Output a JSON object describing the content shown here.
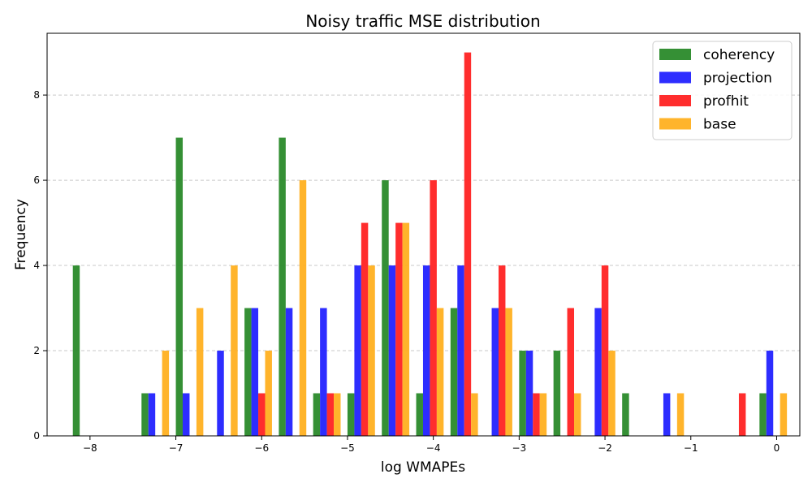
{
  "chart_data": {
    "type": "bar",
    "title": "Noisy traffic MSE distribution",
    "xlabel": "log WMAPEs",
    "ylabel": "Frequency",
    "xlim": [
      -8.5,
      0.27
    ],
    "ylim": [
      0,
      9.45
    ],
    "xticks": [
      -8,
      -7,
      -6,
      -5,
      -4,
      -3,
      -2,
      -1,
      0
    ],
    "yticks": [
      0,
      2,
      4,
      6,
      8
    ],
    "xtick_labels": [
      "−8",
      "−7",
      "−6",
      "−5",
      "−4",
      "−3",
      "−2",
      "−1",
      "0"
    ],
    "ytick_labels": [
      "0",
      "2",
      "4",
      "6",
      "8"
    ],
    "grid": "y-dashed",
    "legend_position": "top-right",
    "bin_start": -8.2,
    "bin_width": 0.4,
    "bar_width": 0.08,
    "series": [
      {
        "name": "coherency",
        "color": "#2a8a2a",
        "values": [
          4,
          0,
          1,
          7,
          0,
          3,
          7,
          1,
          1,
          6,
          1,
          3,
          0,
          2,
          2,
          0,
          1,
          0,
          0,
          0,
          1
        ]
      },
      {
        "name": "projection",
        "color": "#2222ff",
        "values": [
          0,
          0,
          1,
          1,
          2,
          3,
          3,
          3,
          4,
          4,
          4,
          4,
          3,
          2,
          0,
          3,
          0,
          1,
          0,
          0,
          2
        ]
      },
      {
        "name": "profhit",
        "color": "#ff2222",
        "values": [
          0,
          0,
          0,
          0,
          0,
          1,
          0,
          1,
          5,
          5,
          6,
          9,
          4,
          1,
          3,
          4,
          0,
          0,
          0,
          1,
          0
        ]
      },
      {
        "name": "base",
        "color": "#ffb020",
        "values": [
          0,
          0,
          2,
          3,
          4,
          2,
          6,
          1,
          4,
          5,
          3,
          1,
          3,
          1,
          1,
          2,
          0,
          1,
          0,
          0,
          1
        ]
      }
    ]
  }
}
